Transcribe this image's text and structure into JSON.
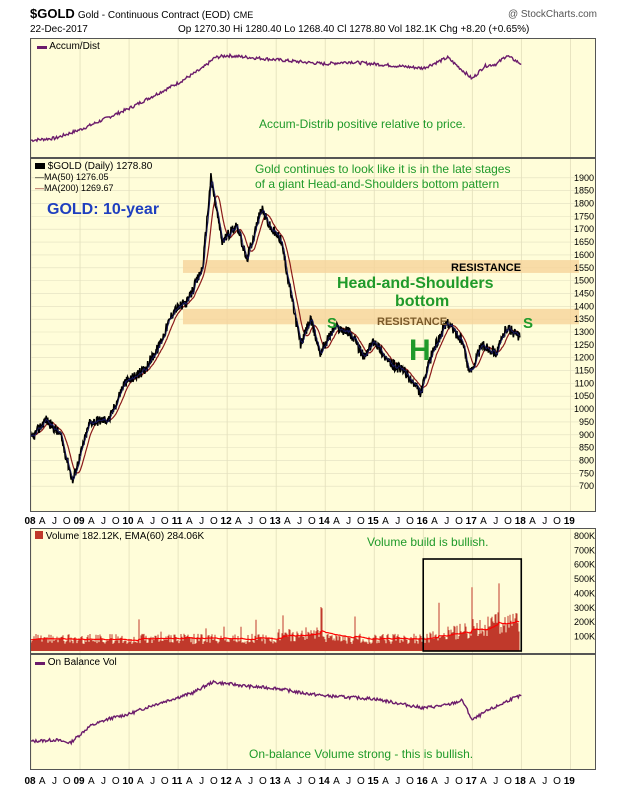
{
  "header": {
    "symbol": "$GOLD",
    "description": "Gold - Continuous Contract (EOD)",
    "exchange": "CME",
    "date": "22-Dec-2017",
    "copyright": "@ StockCharts.com",
    "ohlc": "Op 1270.30  Hi 1280.40  Lo 1268.40  Cl 1278.80  Vol 182.1K  Chg +8.20 (+0.65%)"
  },
  "panels": {
    "accum_label": "Accum/Dist",
    "price_legend": {
      "main": "$GOLD (Daily) 1278.80",
      "ma50": "MA(50) 1276.05",
      "ma200": "MA(200) 1269.67"
    },
    "volume_label": "Volume 182.12K, EMA(60) 284.06K",
    "obv_label": "On Balance Vol"
  },
  "annotations": {
    "gold_title": "GOLD: 10-year",
    "accum_note": "Accum-Distrib positive relative to price.",
    "hs_note_1": "Gold continues to look like it is in the late stages",
    "hs_note_2": "of a giant Head-and-Shoulders bottom pattern",
    "resistance_upper": "RESISTANCE",
    "resistance_lower": "RESISTANCE",
    "hs_title_1": "Head-and-Shoulders",
    "hs_title_2": "bottom",
    "left_shoulder": "S",
    "head": "H",
    "right_shoulder": "S",
    "volume_note": "Volume build is bullish.",
    "obv_note": "On-balance Volume strong - this is bullish."
  },
  "colors": {
    "panel_bg": "#fffdd9",
    "price": "#000000",
    "ma50": "#000000",
    "ma200": "#8b1a1a",
    "indicator": "#6b1b6b",
    "volume_bar": "#c0392b",
    "volume_ema": "#ff0000",
    "resistance_band": "#f6d39a",
    "annotation": "#1f9a2a",
    "gold_title": "#1f3fbf"
  },
  "chart_data": [
    {
      "type": "line",
      "name": "Accum/Dist",
      "x": [
        2008.0,
        2008.5,
        2009.0,
        2009.5,
        2010.0,
        2010.5,
        2011.0,
        2011.5,
        2011.75,
        2012.0,
        2012.5,
        2013.0,
        2013.5,
        2014.0,
        2014.5,
        2015.0,
        2015.5,
        2016.0,
        2016.5,
        2017.0,
        2017.25,
        2017.5,
        2017.7,
        2018.0
      ],
      "y": [
        12,
        14,
        22,
        32,
        42,
        54,
        66,
        80,
        90,
        92,
        90,
        88,
        86,
        84,
        86,
        84,
        82,
        80,
        90,
        70,
        82,
        84,
        92,
        84
      ]
    },
    {
      "type": "line",
      "title": "$GOLD (Daily)",
      "x": [
        2008.0,
        2008.3,
        2008.6,
        2008.85,
        2009.2,
        2009.6,
        2009.9,
        2010.3,
        2010.6,
        2010.9,
        2011.2,
        2011.5,
        2011.67,
        2011.9,
        2012.2,
        2012.4,
        2012.7,
        2012.9,
        2013.1,
        2013.3,
        2013.5,
        2013.7,
        2013.9,
        2014.2,
        2014.5,
        2014.8,
        2015.0,
        2015.3,
        2015.6,
        2015.8,
        2015.95,
        2016.2,
        2016.5,
        2016.8,
        2016.95,
        2017.2,
        2017.5,
        2017.7,
        2017.97
      ],
      "y": [
        880,
        960,
        900,
        720,
        950,
        960,
        1100,
        1150,
        1240,
        1380,
        1420,
        1550,
        1900,
        1650,
        1720,
        1580,
        1780,
        1700,
        1660,
        1450,
        1250,
        1350,
        1220,
        1320,
        1300,
        1200,
        1270,
        1180,
        1150,
        1100,
        1060,
        1230,
        1340,
        1260,
        1140,
        1250,
        1220,
        1320,
        1279
      ],
      "ylim": [
        650,
        1950
      ],
      "yticks": [
        700,
        750,
        800,
        850,
        900,
        950,
        1000,
        1050,
        1100,
        1150,
        1200,
        1250,
        1300,
        1350,
        1400,
        1450,
        1500,
        1550,
        1600,
        1650,
        1700,
        1750,
        1800,
        1850,
        1900
      ],
      "ma50_last": 1276.05,
      "ma200_last": 1269.67,
      "resistance_bands": [
        [
          1530,
          1580
        ],
        [
          1330,
          1390
        ]
      ]
    },
    {
      "type": "bar",
      "name": "Volume",
      "yticks": [
        100,
        200,
        300,
        400,
        500,
        600,
        700,
        800
      ],
      "yunit": "K",
      "ylim": [
        0,
        820
      ],
      "base_level": 80,
      "ema_last": 284.06,
      "last": 182.12,
      "highlight_range": [
        2016.0,
        2018.0
      ]
    },
    {
      "type": "line",
      "name": "On Balance Vol",
      "x": [
        2008.0,
        2008.5,
        2008.8,
        2009.2,
        2009.6,
        2010.0,
        2010.5,
        2011.0,
        2011.3,
        2011.7,
        2012.0,
        2012.5,
        2013.0,
        2013.5,
        2014.0,
        2014.5,
        2015.0,
        2015.5,
        2016.0,
        2016.5,
        2016.8,
        2017.0,
        2017.3,
        2017.5,
        2017.8,
        2018.0
      ],
      "y": [
        10,
        12,
        8,
        30,
        40,
        46,
        58,
        68,
        74,
        88,
        86,
        82,
        80,
        74,
        70,
        68,
        66,
        60,
        54,
        58,
        64,
        38,
        50,
        56,
        66,
        70
      ]
    }
  ],
  "time_axis": [
    "08",
    "A",
    "J",
    "O",
    "09",
    "A",
    "J",
    "O",
    "10",
    "A",
    "J",
    "O",
    "11",
    "A",
    "J",
    "O",
    "12",
    "A",
    "J",
    "O",
    "13",
    "A",
    "J",
    "O",
    "14",
    "A",
    "J",
    "O",
    "15",
    "A",
    "J",
    "O",
    "16",
    "A",
    "J",
    "O",
    "17",
    "A",
    "J",
    "O",
    "18",
    "A",
    "J",
    "O",
    "19"
  ]
}
